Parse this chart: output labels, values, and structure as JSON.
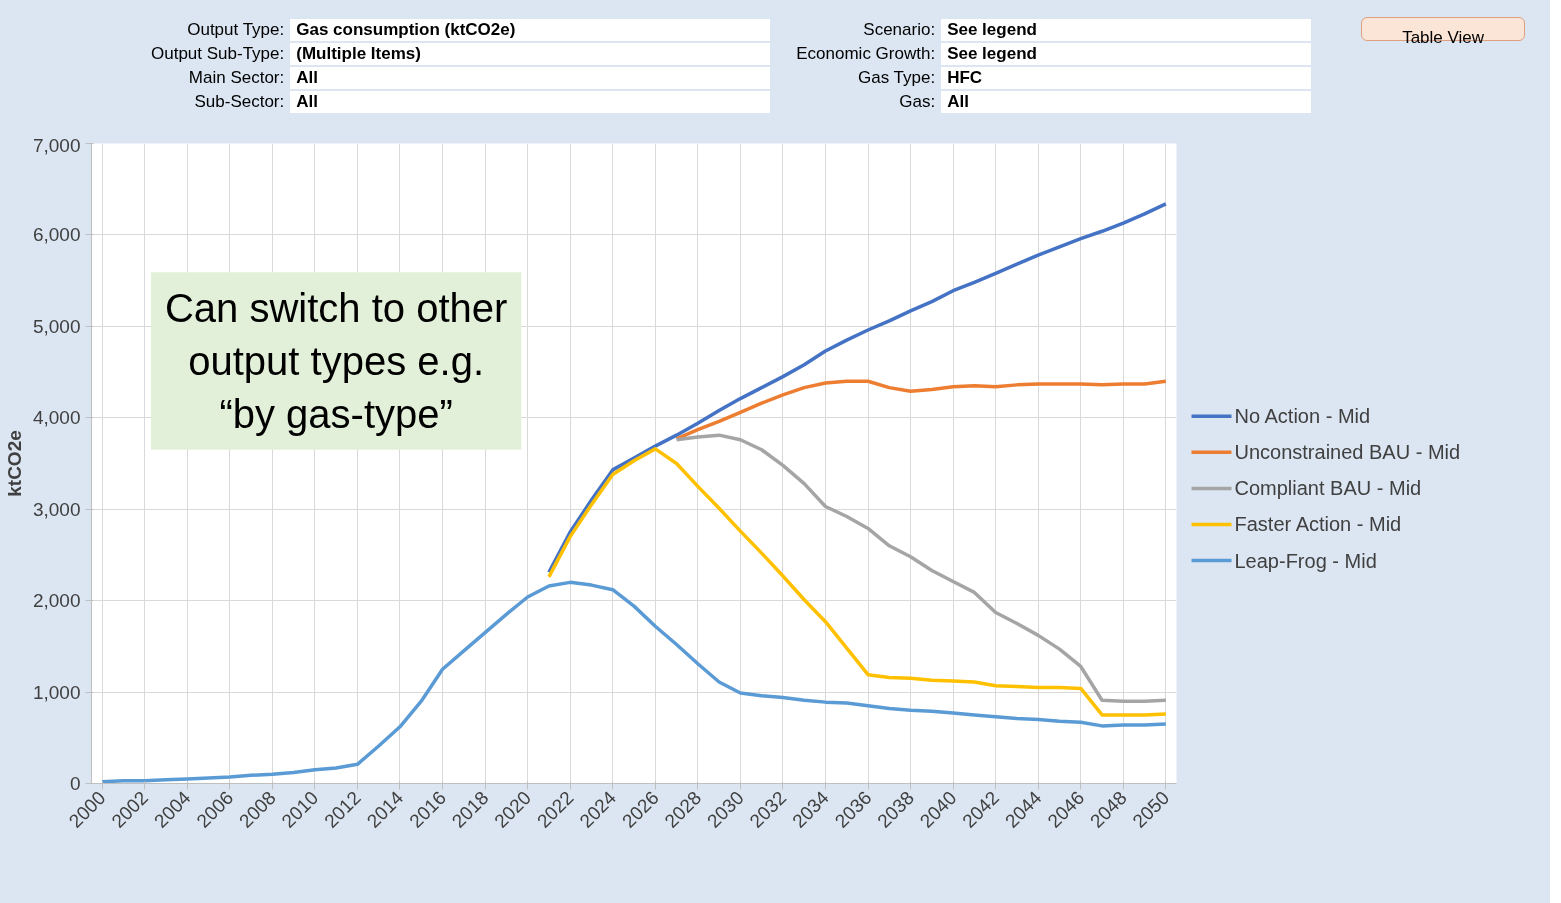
{
  "chart_data": {
    "type": "line",
    "ylabel": "ktCO2e",
    "annotations": [
      "Output Type:",
      "Gas consumption (ktCO2e)",
      "Output Sub-Type:",
      "(Multiple Items)",
      "Main Sector:",
      "All",
      "Sub-Sector:",
      "All",
      "Scenario:",
      "See legend",
      "Economic Growth:",
      "See legend",
      "Gas Type:",
      "HFC",
      "Gas:",
      "All",
      "Table View",
      "Can switch to other\noutput types e.g.\n“by gas-type”"
    ],
    "x": [
      2000,
      2001,
      2002,
      2003,
      2004,
      2005,
      2006,
      2007,
      2008,
      2009,
      2010,
      2011,
      2012,
      2013,
      2014,
      2015,
      2016,
      2017,
      2018,
      2019,
      2020,
      2021,
      2022,
      2023,
      2024,
      2025,
      2026,
      2027,
      2028,
      2029,
      2030,
      2031,
      2032,
      2033,
      2034,
      2035,
      2036,
      2037,
      2038,
      2039,
      2040,
      2041,
      2042,
      2043,
      2044,
      2045,
      2046,
      2047,
      2048,
      2049,
      2050
    ],
    "xlim": [
      1999.5,
      2050.5
    ],
    "xticks": [
      2000,
      2002,
      2004,
      2006,
      2008,
      2010,
      2012,
      2014,
      2016,
      2018,
      2020,
      2022,
      2024,
      2026,
      2028,
      2030,
      2032,
      2034,
      2036,
      2038,
      2040,
      2042,
      2044,
      2046,
      2048,
      2050
    ],
    "ylim": [
      0,
      7000
    ],
    "yticks": [
      {
        "value": 0,
        "label": "0"
      },
      {
        "value": 1000,
        "label": "1,000"
      },
      {
        "value": 2000,
        "label": "2,000"
      },
      {
        "value": 3000,
        "label": "3,000"
      },
      {
        "value": 4000,
        "label": "4,000"
      },
      {
        "value": 5000,
        "label": "5,000"
      },
      {
        "value": 6000,
        "label": "6,000"
      },
      {
        "value": 7000,
        "label": "7,000"
      }
    ],
    "grid": true,
    "legend": "right",
    "marker": "none",
    "line_style": "solid",
    "series": [
      {
        "name": "No Action - Mid",
        "color": "#4472c4",
        "values": [
          null,
          null,
          null,
          null,
          null,
          null,
          null,
          null,
          null,
          null,
          null,
          null,
          null,
          null,
          null,
          null,
          null,
          null,
          null,
          null,
          null,
          2310,
          2750,
          3100,
          3430,
          3560,
          3690,
          3810,
          3940,
          4080,
          4210,
          4330,
          4450,
          4580,
          4730,
          4850,
          4960,
          5060,
          5170,
          5270,
          5390,
          5480,
          5580,
          5680,
          5780,
          5870,
          5960,
          6040,
          6130,
          6230,
          6340
        ]
      },
      {
        "name": "Unconstrained BAU - Mid",
        "color": "#ed7d31",
        "values": [
          null,
          null,
          null,
          null,
          null,
          null,
          null,
          null,
          null,
          null,
          null,
          null,
          null,
          null,
          null,
          null,
          null,
          null,
          null,
          null,
          null,
          null,
          null,
          null,
          null,
          null,
          null,
          3770,
          3870,
          3960,
          4060,
          4160,
          4250,
          4330,
          4380,
          4400,
          4400,
          4330,
          4290,
          4310,
          4340,
          4350,
          4340,
          4360,
          4370,
          4370,
          4370,
          4360,
          4370,
          4370,
          4400
        ]
      },
      {
        "name": "Compliant BAU - Mid",
        "color": "#a5a5a5",
        "values": [
          null,
          null,
          null,
          null,
          null,
          null,
          null,
          null,
          null,
          null,
          null,
          null,
          null,
          null,
          null,
          null,
          null,
          null,
          null,
          null,
          null,
          null,
          null,
          null,
          null,
          null,
          null,
          3760,
          3790,
          3810,
          3760,
          3650,
          3480,
          3280,
          3030,
          2920,
          2790,
          2600,
          2480,
          2330,
          2210,
          2090,
          1870,
          1750,
          1620,
          1470,
          1280,
          910,
          900,
          900,
          910
        ]
      },
      {
        "name": "Faster Action - Mid",
        "color": "#ffc000",
        "values": [
          null,
          null,
          null,
          null,
          null,
          null,
          null,
          null,
          null,
          null,
          null,
          null,
          null,
          null,
          null,
          null,
          null,
          null,
          null,
          null,
          null,
          2260,
          2700,
          3050,
          3380,
          3530,
          3660,
          3500,
          3250,
          3010,
          2760,
          2520,
          2270,
          2010,
          1770,
          1480,
          1190,
          1160,
          1150,
          1130,
          1120,
          1110,
          1070,
          1060,
          1050,
          1050,
          1040,
          750,
          750,
          750,
          760
        ]
      },
      {
        "name": "Leap-Frog - Mid",
        "color": "#5b9bd5",
        "values": [
          20,
          30,
          30,
          40,
          50,
          60,
          70,
          90,
          100,
          120,
          150,
          170,
          210,
          410,
          620,
          900,
          1250,
          1450,
          1650,
          1850,
          2040,
          2160,
          2200,
          2170,
          2120,
          1940,
          1720,
          1520,
          1310,
          1110,
          990,
          960,
          940,
          910,
          890,
          880,
          850,
          820,
          800,
          790,
          770,
          750,
          730,
          710,
          700,
          680,
          670,
          630,
          640,
          640,
          650
        ]
      }
    ]
  }
}
